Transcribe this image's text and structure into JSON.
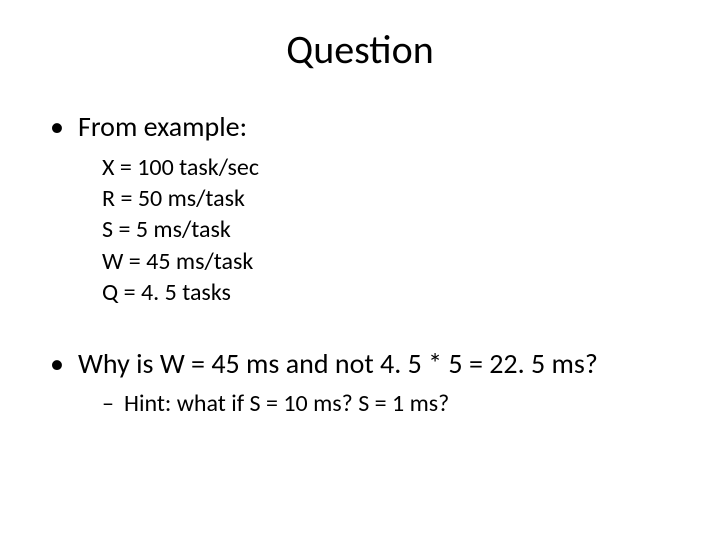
{
  "slide": {
    "title": "Question",
    "bullet1": "From example:",
    "example": {
      "line1": "X = 100 task/sec",
      "line2": "R = 50 ms/task",
      "line3": "S = 5 ms/task",
      "line4": "W = 45 ms/task",
      "line5": "Q = 4. 5 tasks"
    },
    "bullet2": "Why is W = 45 ms and not 4. 5 * 5 = 22. 5 ms?",
    "hint": "Hint: what if S = 10 ms?  S = 1 ms?"
  },
  "styling": {
    "background_color": "#ffffff",
    "text_color": "#000000",
    "title_fontsize": 40,
    "bullet_fontsize": 28,
    "sub_fontsize": 24,
    "font_family": "Calibri"
  }
}
